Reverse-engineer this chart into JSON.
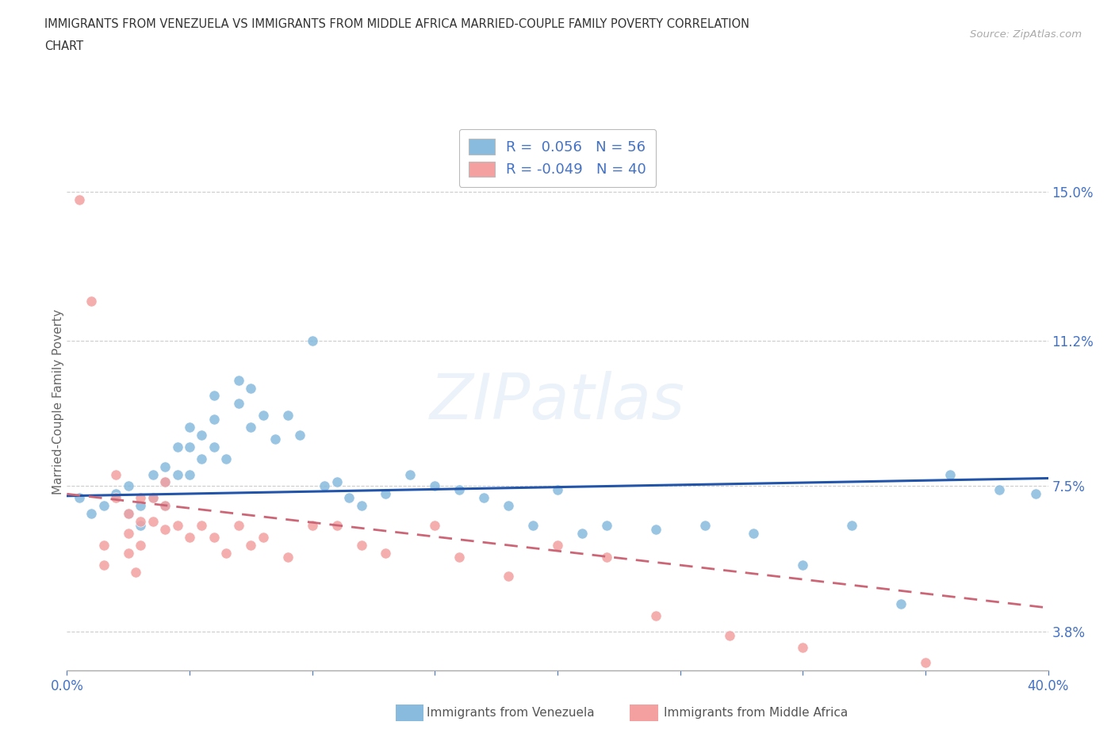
{
  "title_line1": "IMMIGRANTS FROM VENEZUELA VS IMMIGRANTS FROM MIDDLE AFRICA MARRIED-COUPLE FAMILY POVERTY CORRELATION",
  "title_line2": "CHART",
  "source": "Source: ZipAtlas.com",
  "ylabel": "Married-Couple Family Poverty",
  "xlim": [
    0.0,
    0.4
  ],
  "ylim": [
    0.028,
    0.165
  ],
  "yticks": [
    0.038,
    0.075,
    0.112,
    0.15
  ],
  "ytick_labels": [
    "3.8%",
    "7.5%",
    "11.2%",
    "15.0%"
  ],
  "xticks": [
    0.0,
    0.05,
    0.1,
    0.15,
    0.2,
    0.25,
    0.3,
    0.35,
    0.4
  ],
  "xtick_labels": [
    "0.0%",
    "",
    "",
    "",
    "",
    "",
    "",
    "",
    "40.0%"
  ],
  "venezuela_color": "#88bbdd",
  "middle_africa_color": "#f4a0a0",
  "trend_blue": "#2255aa",
  "trend_pink": "#cc6677",
  "venezuela_R": 0.056,
  "venezuela_N": 56,
  "middle_africa_R": -0.049,
  "middle_africa_N": 40,
  "venezuela_label": "Immigrants from Venezuela",
  "middle_africa_label": "Immigrants from Middle Africa",
  "venezuela_x": [
    0.005,
    0.01,
    0.015,
    0.02,
    0.025,
    0.025,
    0.03,
    0.03,
    0.035,
    0.035,
    0.04,
    0.04,
    0.04,
    0.045,
    0.045,
    0.05,
    0.05,
    0.05,
    0.055,
    0.055,
    0.06,
    0.06,
    0.06,
    0.065,
    0.07,
    0.07,
    0.075,
    0.075,
    0.08,
    0.085,
    0.09,
    0.095,
    0.1,
    0.105,
    0.11,
    0.115,
    0.12,
    0.13,
    0.14,
    0.15,
    0.16,
    0.17,
    0.18,
    0.19,
    0.2,
    0.21,
    0.22,
    0.24,
    0.26,
    0.28,
    0.3,
    0.32,
    0.34,
    0.36,
    0.38,
    0.395
  ],
  "venezuela_y": [
    0.072,
    0.068,
    0.07,
    0.073,
    0.075,
    0.068,
    0.07,
    0.065,
    0.078,
    0.072,
    0.08,
    0.076,
    0.07,
    0.085,
    0.078,
    0.09,
    0.085,
    0.078,
    0.088,
    0.082,
    0.098,
    0.092,
    0.085,
    0.082,
    0.102,
    0.096,
    0.1,
    0.09,
    0.093,
    0.087,
    0.093,
    0.088,
    0.112,
    0.075,
    0.076,
    0.072,
    0.07,
    0.073,
    0.078,
    0.075,
    0.074,
    0.072,
    0.07,
    0.065,
    0.074,
    0.063,
    0.065,
    0.064,
    0.065,
    0.063,
    0.055,
    0.065,
    0.045,
    0.078,
    0.074,
    0.073
  ],
  "middle_africa_x": [
    0.005,
    0.01,
    0.015,
    0.015,
    0.02,
    0.02,
    0.025,
    0.025,
    0.025,
    0.028,
    0.03,
    0.03,
    0.03,
    0.035,
    0.035,
    0.04,
    0.04,
    0.04,
    0.045,
    0.05,
    0.055,
    0.06,
    0.065,
    0.07,
    0.075,
    0.08,
    0.09,
    0.1,
    0.11,
    0.12,
    0.13,
    0.15,
    0.16,
    0.18,
    0.2,
    0.22,
    0.24,
    0.27,
    0.3,
    0.35
  ],
  "middle_africa_y": [
    0.148,
    0.122,
    0.06,
    0.055,
    0.078,
    0.072,
    0.068,
    0.063,
    0.058,
    0.053,
    0.072,
    0.066,
    0.06,
    0.072,
    0.066,
    0.076,
    0.07,
    0.064,
    0.065,
    0.062,
    0.065,
    0.062,
    0.058,
    0.065,
    0.06,
    0.062,
    0.057,
    0.065,
    0.065,
    0.06,
    0.058,
    0.065,
    0.057,
    0.052,
    0.06,
    0.057,
    0.042,
    0.037,
    0.034,
    0.03
  ],
  "trend_ven_x0": 0.0,
  "trend_ven_y0": 0.0725,
  "trend_ven_x1": 0.4,
  "trend_ven_y1": 0.077,
  "trend_mid_x0": 0.0,
  "trend_mid_y0": 0.073,
  "trend_mid_x1": 0.4,
  "trend_mid_y1": 0.044
}
